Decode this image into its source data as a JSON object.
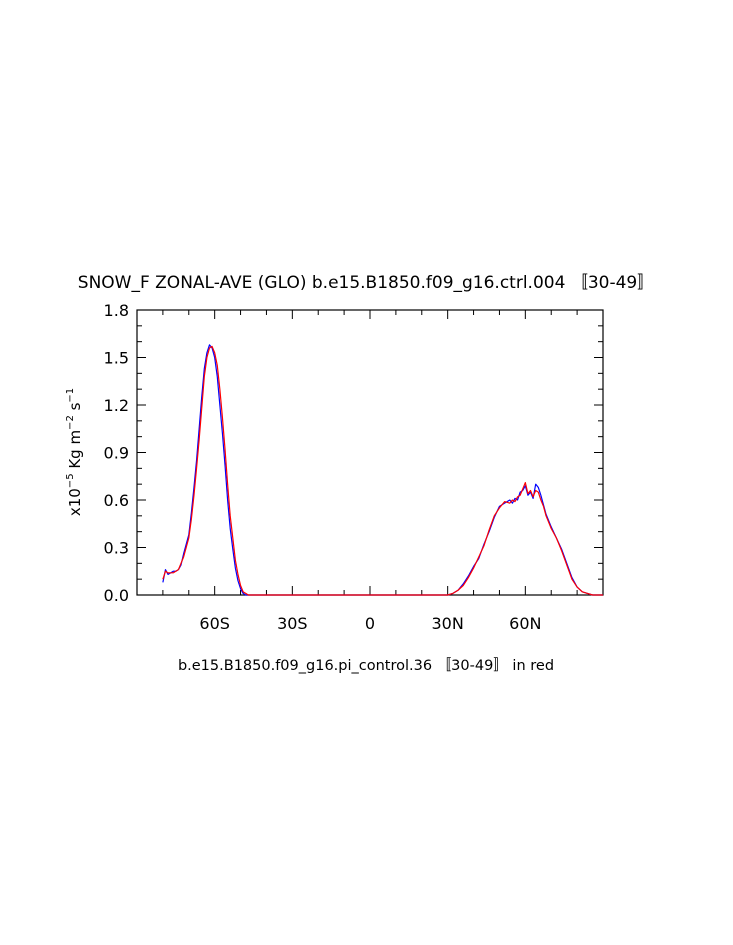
{
  "chart_data": {
    "type": "line",
    "title": "SNOW_F ZONAL-AVE (GLO) b.e15.B1850.f09_g16.ctrl.004 〚30-49〛",
    "caption": "b.e15.B1850.f09_g16.pi_control.36 〚30-49〛 in red",
    "ylabel": {
      "prefix": "x10",
      "exp1": "−5",
      "units_a": " Kg m",
      "exp2": "−2",
      "units_b": " s",
      "exp3": "−1"
    },
    "xlim": [
      -90,
      90
    ],
    "ylim": [
      0.0,
      1.8
    ],
    "x_ticks": [
      {
        "value": -60,
        "label": "60S"
      },
      {
        "value": -30,
        "label": "30S"
      },
      {
        "value": 0,
        "label": "0"
      },
      {
        "value": 30,
        "label": "30N"
      },
      {
        "value": 60,
        "label": "60N"
      }
    ],
    "y_ticks": [
      {
        "value": 0.0,
        "label": "0.0"
      },
      {
        "value": 0.3,
        "label": "0.3"
      },
      {
        "value": 0.6,
        "label": "0.6"
      },
      {
        "value": 0.9,
        "label": "0.9"
      },
      {
        "value": 1.2,
        "label": "1.2"
      },
      {
        "value": 1.5,
        "label": "1.5"
      },
      {
        "value": 1.8,
        "label": "1.8"
      }
    ],
    "series": [
      {
        "color": "#0000ff",
        "x": [
          -80,
          -79,
          -78,
          -77,
          -76,
          -75,
          -74,
          -73,
          -72,
          -71,
          -70,
          -69,
          -68,
          -67,
          -66,
          -65,
          -64,
          -63,
          -62,
          -61,
          -60,
          -59,
          -58,
          -57,
          -56,
          -55,
          -54,
          -53,
          -52,
          -51,
          -50,
          -49,
          -48,
          -47,
          -46,
          -45,
          -44,
          -43,
          -42,
          -41,
          -40,
          -30,
          0,
          25,
          28,
          30,
          32,
          34,
          36,
          38,
          40,
          42,
          44,
          46,
          48,
          50,
          52,
          54,
          55,
          56,
          57,
          58,
          59,
          60,
          61,
          62,
          63,
          64,
          65,
          66,
          67,
          68,
          70,
          72,
          74,
          76,
          78,
          80,
          82,
          84,
          86,
          88,
          90
        ],
        "y": [
          0.08,
          0.16,
          0.13,
          0.14,
          0.15,
          0.15,
          0.16,
          0.19,
          0.26,
          0.32,
          0.38,
          0.52,
          0.68,
          0.85,
          1.05,
          1.25,
          1.43,
          1.53,
          1.58,
          1.56,
          1.5,
          1.38,
          1.2,
          1.02,
          0.82,
          0.6,
          0.42,
          0.29,
          0.17,
          0.09,
          0.04,
          0.01,
          0.0,
          0.0,
          0.0,
          0.0,
          0.0,
          0.0,
          0.0,
          0.0,
          0.0,
          0.0,
          0.0,
          0.0,
          0.0,
          0.0,
          0.01,
          0.03,
          0.07,
          0.12,
          0.18,
          0.23,
          0.32,
          0.4,
          0.49,
          0.56,
          0.58,
          0.6,
          0.58,
          0.61,
          0.6,
          0.65,
          0.66,
          0.69,
          0.63,
          0.65,
          0.61,
          0.7,
          0.68,
          0.63,
          0.57,
          0.51,
          0.43,
          0.36,
          0.29,
          0.2,
          0.11,
          0.05,
          0.02,
          0.01,
          0.0,
          0.0,
          0.0
        ]
      },
      {
        "color": "#ff0000",
        "x": [
          -80,
          -79,
          -78,
          -77,
          -76,
          -75,
          -74,
          -73,
          -72,
          -71,
          -70,
          -69,
          -68,
          -67,
          -66,
          -65,
          -64,
          -63,
          -62,
          -61,
          -60,
          -59,
          -58,
          -57,
          -56,
          -55,
          -54,
          -53,
          -52,
          -51,
          -50,
          -49,
          -48,
          -47,
          -46,
          -45,
          -44,
          -43,
          -42,
          -41,
          -40,
          -30,
          0,
          25,
          28,
          30,
          32,
          34,
          36,
          38,
          40,
          42,
          44,
          46,
          48,
          50,
          52,
          54,
          55,
          56,
          57,
          58,
          59,
          60,
          61,
          62,
          63,
          64,
          65,
          66,
          67,
          68,
          70,
          72,
          74,
          76,
          78,
          80,
          82,
          84,
          86,
          88,
          90
        ],
        "y": [
          0.1,
          0.15,
          0.14,
          0.14,
          0.14,
          0.15,
          0.16,
          0.2,
          0.24,
          0.3,
          0.36,
          0.48,
          0.63,
          0.8,
          0.98,
          1.18,
          1.38,
          1.5,
          1.56,
          1.57,
          1.53,
          1.45,
          1.3,
          1.12,
          0.92,
          0.7,
          0.5,
          0.36,
          0.22,
          0.13,
          0.06,
          0.02,
          0.01,
          0.0,
          0.0,
          0.0,
          0.0,
          0.0,
          0.0,
          0.0,
          0.0,
          0.0,
          0.0,
          0.0,
          0.0,
          0.0,
          0.01,
          0.03,
          0.06,
          0.11,
          0.17,
          0.24,
          0.31,
          0.41,
          0.5,
          0.55,
          0.59,
          0.58,
          0.6,
          0.59,
          0.62,
          0.63,
          0.67,
          0.71,
          0.64,
          0.66,
          0.62,
          0.66,
          0.65,
          0.6,
          0.56,
          0.5,
          0.42,
          0.36,
          0.28,
          0.19,
          0.1,
          0.05,
          0.02,
          0.01,
          0.0,
          0.0,
          0.0
        ]
      }
    ]
  }
}
